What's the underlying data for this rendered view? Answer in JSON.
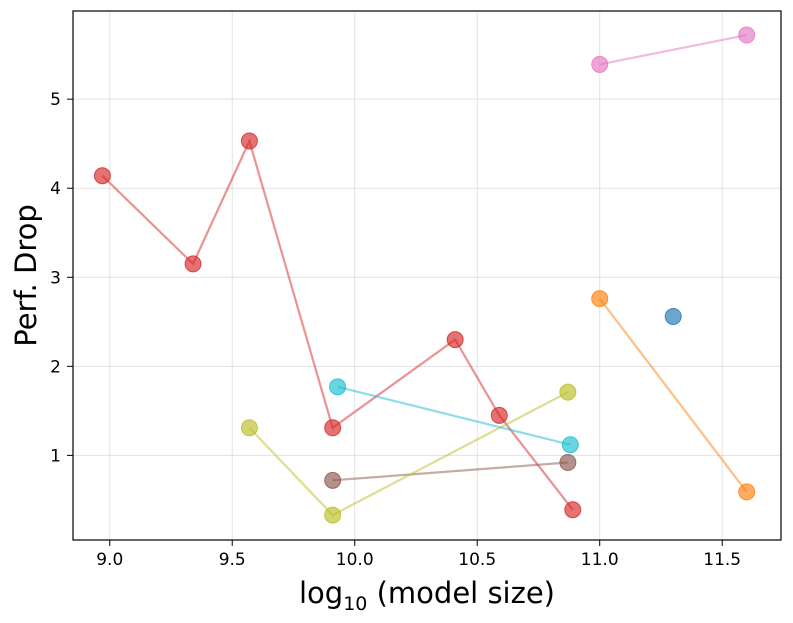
{
  "chart_data": {
    "type": "scatter",
    "title": "",
    "xlabel": {
      "base": "log",
      "sub": "10",
      "rest": "(model size)"
    },
    "ylabel": "Perf. Drop",
    "xlim": [
      8.85,
      11.74
    ],
    "ylim": [
      0.05,
      5.99
    ],
    "xticks": [
      9.0,
      9.5,
      10.0,
      10.5,
      11.0,
      11.5
    ],
    "xtick_labels": [
      "9.0",
      "9.5",
      "10.0",
      "10.5",
      "11.0",
      "11.5"
    ],
    "yticks": [
      1,
      2,
      3,
      4,
      5
    ],
    "ytick_labels": [
      "1",
      "2",
      "3",
      "4",
      "5"
    ],
    "grid": true,
    "series": [
      {
        "color": "#1f77b4",
        "points": [
          [
            11.3,
            2.56
          ]
        ]
      },
      {
        "color": "#ff7f0e",
        "points": [
          [
            11.0,
            2.76
          ],
          [
            11.6,
            0.59
          ]
        ]
      },
      {
        "color": "#d62728",
        "points": [
          [
            8.97,
            4.14
          ],
          [
            9.34,
            3.15
          ],
          [
            9.57,
            4.53
          ],
          [
            9.91,
            1.31
          ],
          [
            10.41,
            2.3
          ],
          [
            10.59,
            1.45
          ],
          [
            10.89,
            0.39
          ]
        ]
      },
      {
        "color": "#8c564b",
        "points": [
          [
            9.91,
            0.72
          ],
          [
            10.87,
            0.92
          ]
        ]
      },
      {
        "color": "#e377c2",
        "points": [
          [
            11.0,
            5.39
          ],
          [
            11.6,
            5.72
          ]
        ]
      },
      {
        "color": "#bcbd22",
        "points": [
          [
            9.57,
            1.31
          ],
          [
            9.91,
            0.33
          ],
          [
            10.87,
            1.71
          ]
        ]
      },
      {
        "color": "#17becf",
        "points": [
          [
            9.93,
            1.77
          ],
          [
            10.88,
            1.12
          ]
        ]
      }
    ]
  }
}
